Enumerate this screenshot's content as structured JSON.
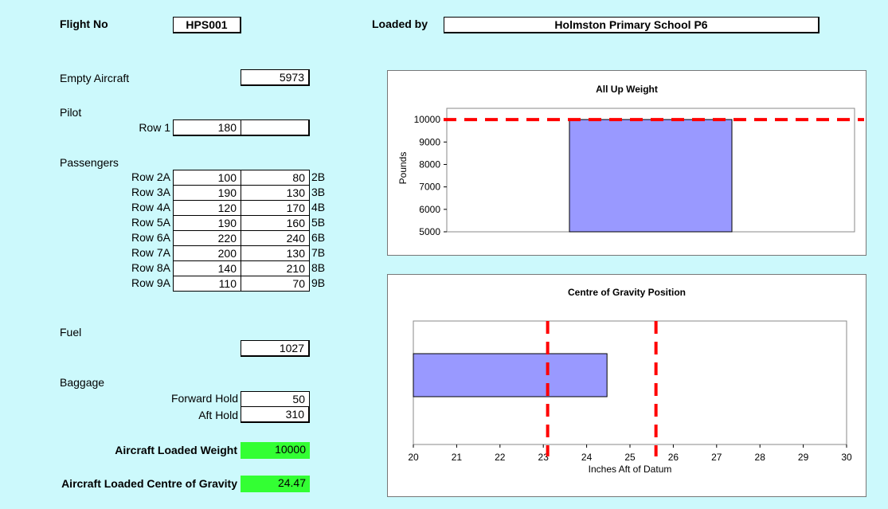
{
  "header": {
    "flight_label": "Flight No",
    "flight_value": "HPS001",
    "loaded_label": "Loaded by",
    "loaded_value": "Holmston Primary School P6"
  },
  "empty_aircraft": {
    "label": "Empty Aircraft",
    "value": "5973"
  },
  "pilot": {
    "label": "Pilot",
    "row_label": "Row 1",
    "value": "180",
    "value_b": ""
  },
  "passengers": {
    "label": "Passengers",
    "rows": [
      {
        "label": "Row 2A",
        "a": "100",
        "b": "80",
        "b_label": "2B"
      },
      {
        "label": "Row 3A",
        "a": "190",
        "b": "130",
        "b_label": "3B"
      },
      {
        "label": "Row 4A",
        "a": "120",
        "b": "170",
        "b_label": "4B"
      },
      {
        "label": "Row 5A",
        "a": "190",
        "b": "160",
        "b_label": "5B"
      },
      {
        "label": "Row 6A",
        "a": "220",
        "b": "240",
        "b_label": "6B"
      },
      {
        "label": "Row 7A",
        "a": "200",
        "b": "130",
        "b_label": "7B"
      },
      {
        "label": "Row 8A",
        "a": "140",
        "b": "210",
        "b_label": "8B"
      },
      {
        "label": "Row 9A",
        "a": "110",
        "b": "70",
        "b_label": "9B"
      }
    ]
  },
  "fuel": {
    "label": "Fuel",
    "value": "1027"
  },
  "baggage": {
    "label": "Baggage",
    "forward_label": "Forward Hold",
    "forward_value": "50",
    "aft_label": "Aft Hold",
    "aft_value": "310"
  },
  "results": {
    "weight_label": "Aircraft Loaded Weight",
    "weight_value": "10000",
    "cg_label": "Aircraft Loaded Centre of Gravity",
    "cg_value": "24.47"
  },
  "colors": {
    "background": "#ccf9fc",
    "bar": "#9999ff",
    "limit": "#ff0000",
    "result": "#33ff33"
  },
  "chart_data": [
    {
      "type": "bar",
      "title": "All Up Weight",
      "ylabel": "Pounds",
      "xlabel": "",
      "ylim": [
        5000,
        10500
      ],
      "yticks": [
        5000,
        6000,
        7000,
        8000,
        9000,
        10000
      ],
      "values": [
        10000
      ],
      "limit_line": 10000,
      "grid": false
    },
    {
      "type": "bar",
      "orientation": "horizontal",
      "title": "Centre of Gravity Position",
      "xlabel": "Inches Aft of Datum",
      "ylabel": "",
      "xlim": [
        20,
        30
      ],
      "xticks": [
        20,
        21,
        22,
        23,
        24,
        25,
        26,
        27,
        28,
        29,
        30
      ],
      "values": [
        24.47
      ],
      "limit_lines": [
        23.1,
        25.6
      ],
      "grid": false
    }
  ]
}
